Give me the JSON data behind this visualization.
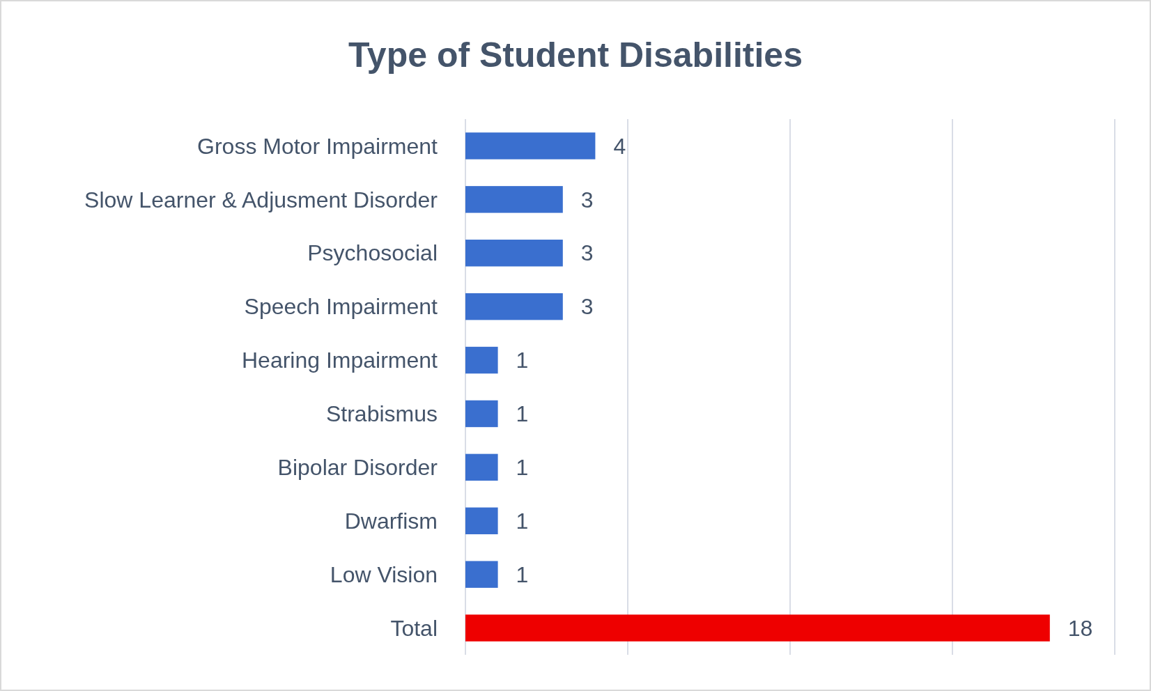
{
  "chart_data": {
    "type": "bar",
    "orientation": "horizontal",
    "title": "Type of Student Disabilities",
    "categories": [
      "Gross Motor Impairment",
      "Slow Learner & Adjusment Disorder",
      "Psychosocial",
      "Speech Impairment",
      "Hearing Impairment",
      "Strabismus",
      "Bipolar Disorder",
      "Dwarfism",
      "Low Vision",
      "Total"
    ],
    "values": [
      4,
      3,
      3,
      3,
      1,
      1,
      1,
      1,
      1,
      18
    ],
    "colors": [
      "#3a6fcf",
      "#3a6fcf",
      "#3a6fcf",
      "#3a6fcf",
      "#3a6fcf",
      "#3a6fcf",
      "#3a6fcf",
      "#3a6fcf",
      "#3a6fcf",
      "#ee0000"
    ],
    "xlim": [
      0,
      20
    ],
    "xticks": [
      {
        "value": 0,
        "label": null
      },
      {
        "value": 5,
        "label": null
      },
      {
        "value": 10,
        "label": null
      },
      {
        "value": 15,
        "label": null
      },
      {
        "value": 20,
        "label": null
      }
    ],
    "grid": "x",
    "tick_labels": "y",
    "data_labels": true
  }
}
